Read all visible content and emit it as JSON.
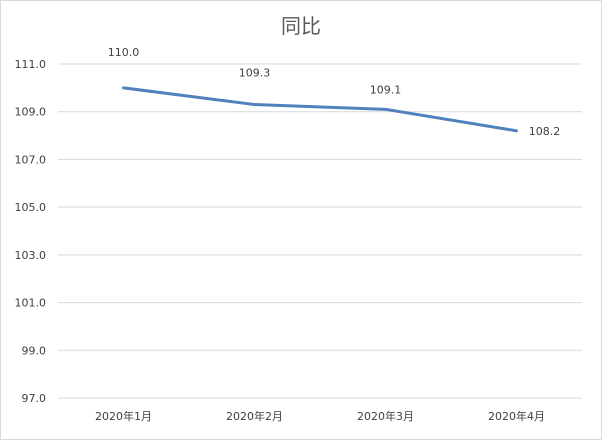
{
  "chart_data": {
    "type": "line",
    "title": "同比",
    "categories": [
      "2020年1月",
      "2020年2月",
      "2020年3月",
      "2020年4月"
    ],
    "series": [
      {
        "values": [
          110.0,
          109.3,
          109.1,
          108.2
        ],
        "color": "#4f81bd"
      }
    ],
    "data_labels": [
      "110.0",
      "109.3",
      "109.1",
      "108.2"
    ],
    "ylim": [
      97.0,
      111.0
    ],
    "yticks": [
      "111.0",
      "109.0",
      "107.0",
      "105.0",
      "103.0",
      "101.0",
      "99.0",
      "97.0"
    ],
    "ytick_values": [
      111,
      109,
      107,
      105,
      103,
      101,
      99,
      97
    ],
    "grid": true,
    "gridline_color": "#d9d9d9",
    "legend": "none"
  }
}
